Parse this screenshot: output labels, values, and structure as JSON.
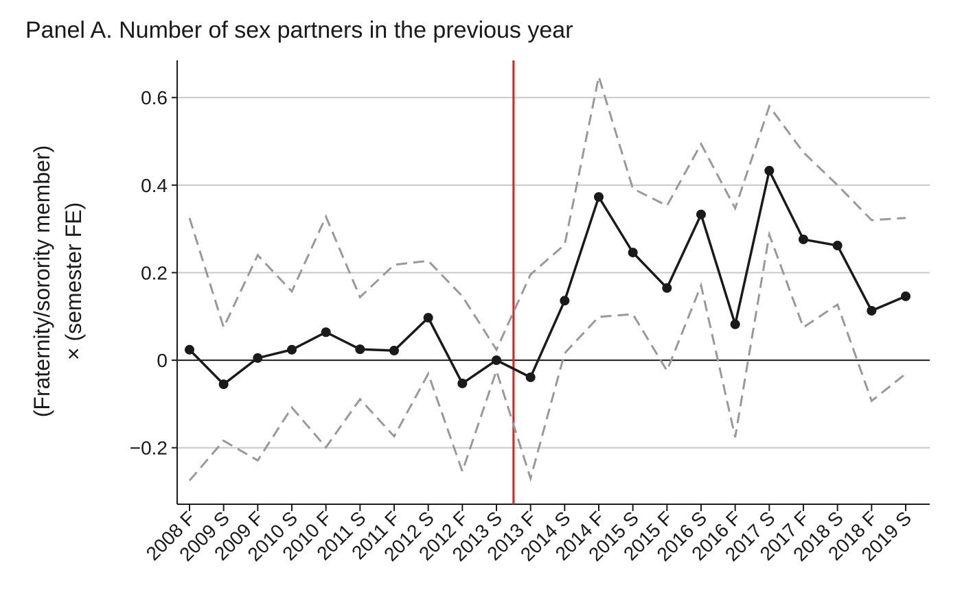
{
  "chart_data": {
    "type": "line",
    "title": "Panel A. Number of sex partners in the previous year",
    "ylabel": [
      "(Fraternity/sorority member)",
      "× (semester FE)"
    ],
    "categories": [
      "2008 F",
      "2009 S",
      "2009 F",
      "2010 S",
      "2010 F",
      "2011 S",
      "2011 F",
      "2012 S",
      "2012 F",
      "2013 S",
      "2013 F",
      "2014 S",
      "2014 F",
      "2015 S",
      "2015 F",
      "2016 S",
      "2016 F",
      "2017 S",
      "2017 F",
      "2018 S",
      "2018 F",
      "2019 S"
    ],
    "series": [
      {
        "color": "#1a1a1a",
        "style": "solid",
        "markers": true,
        "values": [
          0.024,
          -0.055,
          0.005,
          0.024,
          0.064,
          0.025,
          0.022,
          0.097,
          -0.053,
          0,
          -0.039,
          0.136,
          0.373,
          0.246,
          0.165,
          0.333,
          0.082,
          0.433,
          0.276,
          0.262,
          0.113,
          0.146
        ]
      },
      {
        "color": "#999999",
        "style": "dashed",
        "markers": false,
        "values": [
          0.325,
          0.075,
          0.24,
          0.157,
          0.328,
          0.144,
          0.218,
          0.227,
          0.146,
          0.024,
          0.196,
          0.264,
          0.648,
          0.392,
          0.353,
          0.494,
          0.347,
          0.58,
          0.475,
          0.4,
          0.32,
          0.325
        ]
      },
      {
        "color": "#999999",
        "style": "dashed",
        "markers": false,
        "values": [
          -0.275,
          -0.184,
          -0.229,
          -0.108,
          -0.199,
          -0.089,
          -0.174,
          -0.031,
          -0.254,
          -0.024,
          -0.27,
          0.016,
          0.099,
          0.105,
          -0.024,
          0.171,
          -0.176,
          0.287,
          0.075,
          0.127,
          -0.093,
          -0.031
        ]
      }
    ],
    "ylim": [
      -0.329,
      0.685
    ],
    "yticks": [
      {
        "value": -0.2,
        "label": "−0.2"
      },
      0,
      0.2,
      0.4,
      0.6
    ],
    "grid": true,
    "event_line": {
      "position": 9.5,
      "color": "#d7261e"
    }
  }
}
